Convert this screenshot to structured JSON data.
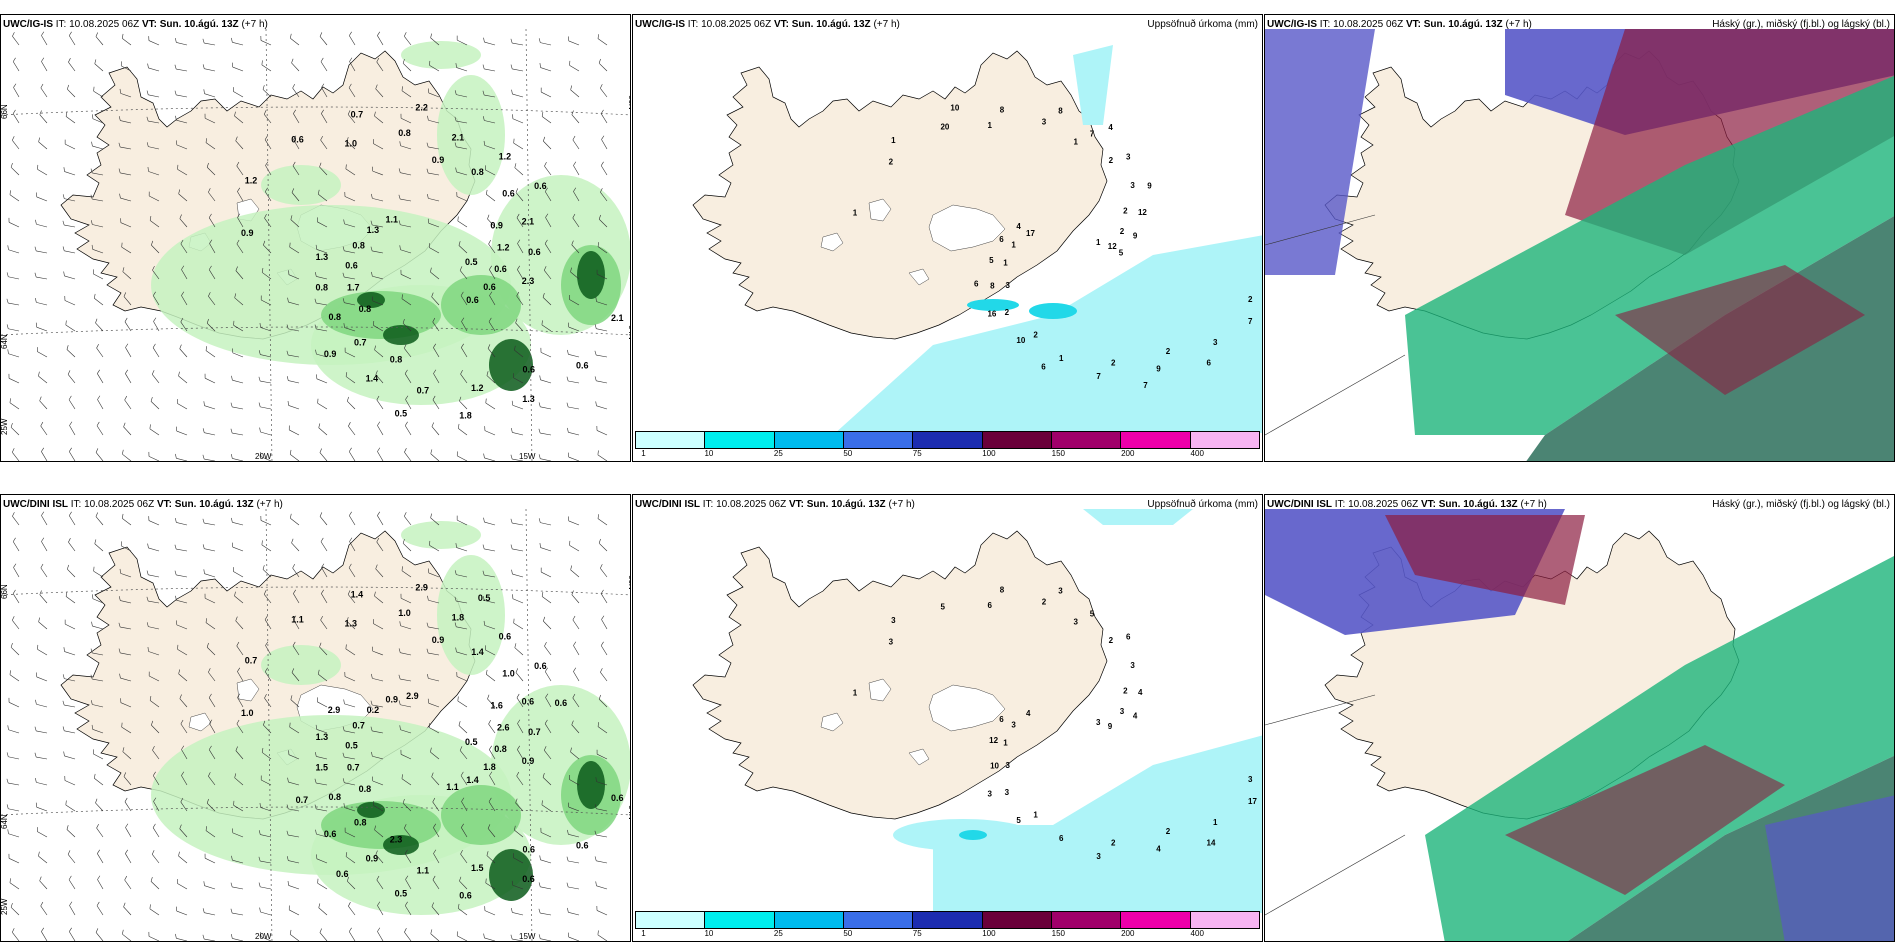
{
  "rows": [
    {
      "wind": {
        "model": "UWC/IG-IS",
        "it_label": "IT:",
        "it_value": "10.08.2025 06Z",
        "vt_label": "VT:",
        "vt_value": "Sun. 10.ágú. 13Z",
        "offset": "(+7 h)",
        "lat_labels": [
          "66N",
          "64N"
        ],
        "lon_labels": [
          "20W",
          "15W",
          "25W"
        ],
        "values": [
          "0.5",
          "0.8",
          "0.9",
          "0.6",
          "0.9",
          "0.9",
          "0.8",
          "1.0",
          "2.1",
          "1.7",
          "0.8",
          "1.2",
          "1.2",
          "1.2",
          "0.7",
          "0.8",
          "0.6",
          "0.6",
          "0.6",
          "0.7",
          "0.6",
          "0.6",
          "0.8",
          "2.1",
          "1.3",
          "0.8",
          "2.1",
          "1.4",
          "0.7",
          "0.6",
          "0.8",
          "1.2",
          "1.8",
          "1.3",
          "0.6",
          "0.9",
          "2.2",
          "0.6",
          "1.3",
          "0.6",
          "0.5",
          "1.1",
          "2.3"
        ]
      },
      "precip": {
        "model": "UWC/IG-IS",
        "it_label": "IT:",
        "it_value": "10.08.2025 06Z",
        "vt_label": "VT:",
        "vt_value": "Sun. 10.ágú. 13Z",
        "offset": "(+7 h)",
        "right_label": "Uppsöfnuð úrkoma (mm)",
        "values": [
          "1",
          "3",
          "1",
          "2",
          "1",
          "2",
          "2",
          "1",
          "2",
          "1",
          "2",
          "2",
          "2",
          "2",
          "2",
          "3",
          "3",
          "1",
          "3",
          "1",
          "20",
          "12",
          "8",
          "7",
          "9",
          "17",
          "12",
          "10",
          "8",
          "7",
          "5",
          "3",
          "7",
          "1",
          "9",
          "16",
          "8",
          "6",
          "6",
          "9",
          "6",
          "10",
          "5",
          "6",
          "4",
          "7",
          "4"
        ]
      },
      "clouds": {
        "model": "UWC/IG-IS",
        "it_label": "IT:",
        "it_value": "10.08.2025 06Z",
        "vt_label": "VT:",
        "vt_value": "Sun. 10.ágú. 13Z",
        "offset": "(+7 h)",
        "right_label": "Háský (gr.), miðský (fj.bl.) og lágský (bl.)"
      }
    },
    {
      "wind": {
        "model": "UWC/DINI ISL",
        "it_label": "IT:",
        "it_value": "10.08.2025 06Z",
        "vt_label": "VT:",
        "vt_value": "Sun. 10.ágú. 13Z",
        "offset": "(+7 h)",
        "lat_labels": [
          "66N",
          "64N"
        ],
        "lon_labels": [
          "20W",
          "15W",
          "25W"
        ],
        "values": [
          "0.5",
          "0.8",
          "0.9",
          "0.6",
          "1.0",
          "1.6",
          "2.3",
          "1.3",
          "0.6",
          "0.7",
          "1.4",
          "1.5",
          "0.7",
          "2.6",
          "0.8",
          "1.0",
          "0.6",
          "0.5",
          "1.0",
          "1.1",
          "1.1",
          "0.8",
          "0.8",
          "1.8",
          "0.6",
          "0.7",
          "0.6",
          "0.9",
          "1.4",
          "1.8",
          "1.5",
          "0.6",
          "0.6",
          "0.2",
          "0.7",
          "0.6",
          "2.9",
          "1.4",
          "1.3",
          "0.6",
          "0.5",
          "0.9",
          "0.9",
          "0.7",
          "0.5",
          "1.1",
          "2.9",
          "0.6",
          "0.6",
          "2.9"
        ]
      },
      "precip": {
        "model": "UWC/DINI ISL",
        "it_label": "IT:",
        "it_value": "10.08.2025 06Z",
        "vt_label": "VT:",
        "vt_value": "Sun. 10.ágú. 13Z",
        "offset": "(+7 h)",
        "right_label": "Uppsöfnuð úrkoma (mm)",
        "values": [
          "3",
          "3",
          "3",
          "2",
          "1",
          "2",
          "1",
          "6",
          "3",
          "1",
          "2",
          "2",
          "3",
          "3",
          "3",
          "2",
          "1",
          "3",
          "3",
          "6",
          "5",
          "9",
          "10",
          "5",
          "4",
          "4",
          "4",
          "5",
          "8",
          "17",
          "12",
          "6",
          "3",
          "3",
          "4",
          "3",
          "3",
          "14",
          "6"
        ]
      },
      "clouds": {
        "model": "UWC/DINI ISL",
        "it_label": "IT:",
        "it_value": "10.08.2025 06Z",
        "vt_label": "VT:",
        "vt_value": "Sun. 10.ágú. 13Z",
        "offset": "(+7 h)",
        "right_label": "Háský (gr.), miðský (fj.bl.) og lágský (bl.)"
      }
    }
  ],
  "colorbar": {
    "labels": [
      "1",
      "10",
      "25",
      "50",
      "75",
      "100",
      "150",
      "200",
      "400"
    ],
    "colors": [
      "#ccffff",
      "#00eeee",
      "#00bbee",
      "#3a6ee8",
      "#1c2cb0",
      "#6a003a",
      "#a0006a",
      "#ee00aa",
      "#f6b4f2"
    ]
  },
  "map_colors": {
    "land": "#f8eee0",
    "green_light": "#c6f2c0",
    "green_mid": "#7fd67f",
    "green_dark": "#0a5a1a",
    "precip_light": "#aef4f8",
    "precip_mid": "#22d8e8",
    "cloud_high": "#1db47a",
    "cloud_mid": "#5858c8",
    "cloud_low": "#8c1c40"
  }
}
